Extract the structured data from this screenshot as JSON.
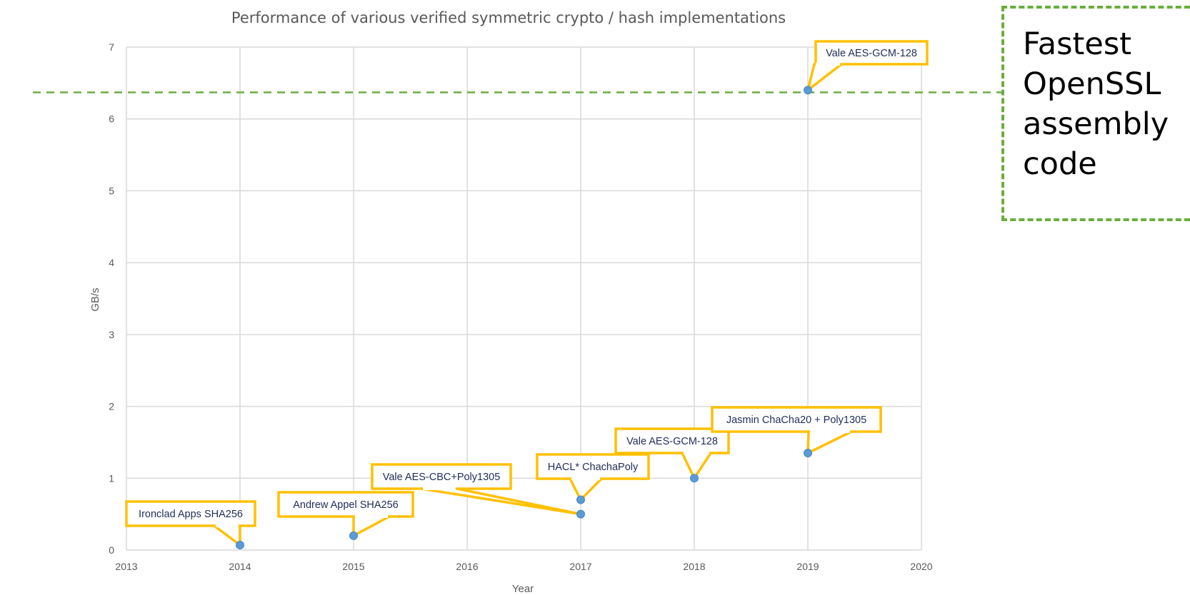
{
  "chart_data": {
    "type": "scatter",
    "title": "Performance of various verified symmetric crypto / hash implementations",
    "xlabel": "Year",
    "ylabel": "GB/s",
    "xlim": [
      2013,
      2020
    ],
    "ylim": [
      0,
      7
    ],
    "x_ticks": [
      "2013",
      "2014",
      "2015",
      "2016",
      "2017",
      "2018",
      "2019",
      "2020"
    ],
    "y_ticks": [
      "0",
      "1",
      "2",
      "3",
      "4",
      "5",
      "6",
      "7"
    ],
    "grid": true,
    "legend": "none",
    "points": [
      {
        "x": 2014,
        "y": 0.07,
        "label": "Ironclad Apps SHA256"
      },
      {
        "x": 2015,
        "y": 0.2,
        "label": "Andrew Appel SHA256"
      },
      {
        "x": 2017,
        "y": 0.5,
        "label": "Vale AES-CBC+Poly1305"
      },
      {
        "x": 2017,
        "y": 0.7,
        "label": "HACL* ChachaPoly"
      },
      {
        "x": 2018,
        "y": 1.0,
        "label": "Vale AES-GCM-128"
      },
      {
        "x": 2019,
        "y": 1.35,
        "label": "Jasmin ChaCha20 + Poly1305"
      },
      {
        "x": 2019,
        "y": 6.4,
        "label": "Vale AES-GCM-128"
      }
    ],
    "reference_line": {
      "y": 6.37,
      "label": "Fastest OpenSSL assembly code"
    },
    "colors": {
      "point": "#5b9bd5",
      "callout_border": "#ffc000",
      "reference_line": "#6aad3e",
      "grid": "#d9d9d9",
      "text": "#595959"
    }
  },
  "reference_box": {
    "text": "Fastest\nOpenSSL\nassembly\ncode"
  }
}
